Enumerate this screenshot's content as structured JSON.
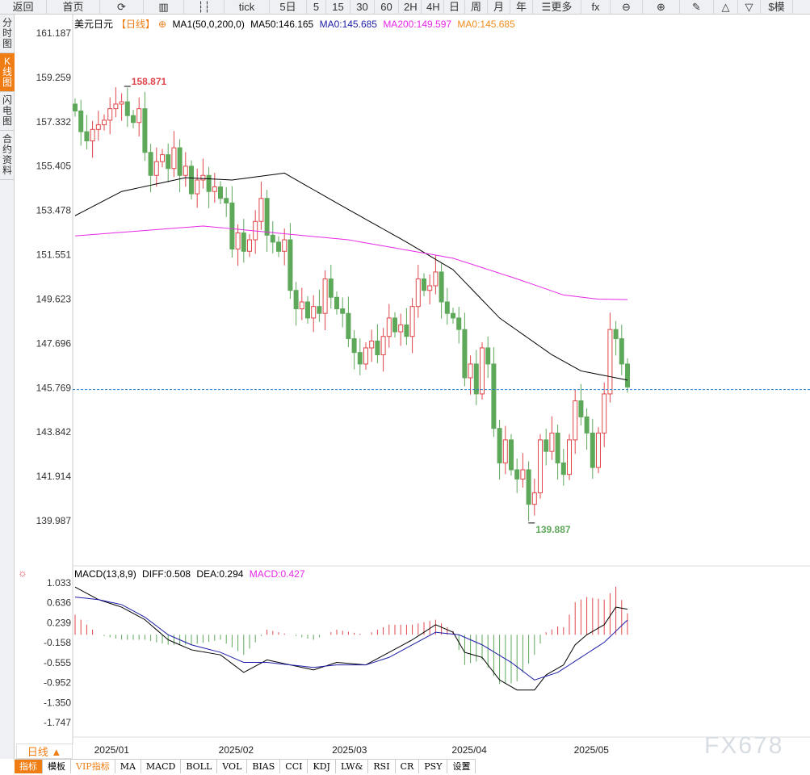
{
  "toolbar": [
    "返回",
    "首页",
    "⟳",
    "▥",
    "┆┆",
    "tick",
    "5日",
    "5",
    "15",
    "30",
    "60",
    "2H",
    "4H",
    "日",
    "周",
    "月",
    "年",
    "☰更多",
    "fx",
    "⊖",
    "⊕",
    "✎",
    "△",
    "▽",
    "$模"
  ],
  "toolbar_icons": [
    "back-icon",
    "home-icon",
    "refresh-icon",
    "chart-icon",
    "candle-icon"
  ],
  "side_tabs": [
    {
      "label": "分时图",
      "active": false
    },
    {
      "label": "K线图",
      "active": true
    },
    {
      "label": "闪电图",
      "active": false
    },
    {
      "label": "合约资料",
      "active": false
    }
  ],
  "legend": {
    "symbol": "美元日元",
    "period": "【日线】",
    "ma_setting": "MA1(50,0,200,0)",
    "ma50": "MA50:146.165",
    "ma0": "MA0:145.685",
    "ma200": "MA200:149.597",
    "ma0b": "MA0:145.685"
  },
  "macd_legend": {
    "name": "MACD(13,8,9)",
    "diff": "DIFF:0.508",
    "dea": "DEA:0.294",
    "macd": "MACD:0.427"
  },
  "period_button": "日线 ▲",
  "bottom_tabs": [
    {
      "label": "指标",
      "active": true
    },
    {
      "label": "模板"
    },
    {
      "label": "VIP指标",
      "vip": true
    },
    {
      "label": "MA"
    },
    {
      "label": "MACD"
    },
    {
      "label": "BOLL"
    },
    {
      "label": "VOL"
    },
    {
      "label": "BIAS"
    },
    {
      "label": "CCI"
    },
    {
      "label": "KDJ"
    },
    {
      "label": "LW&"
    },
    {
      "label": "RSI"
    },
    {
      "label": "CR"
    },
    {
      "label": "PSY"
    },
    {
      "label": "设置"
    }
  ],
  "watermark": "FX678",
  "colors": {
    "up": "#e0464a",
    "down": "#5ea85a",
    "ma50": "#000000",
    "ma200": "#e628e6",
    "diff": "#000000",
    "dea": "#1c1ca8",
    "accent": "#f07d14",
    "current": "#1e7fd0"
  },
  "chart_data": {
    "type": "candlestick",
    "price_ticks": [
      "161.187",
      "159.259",
      "157.332",
      "155.405",
      "153.478",
      "151.551",
      "149.623",
      "147.696",
      "145.769",
      "143.842",
      "141.914",
      "139.987"
    ],
    "ylim": [
      139.987,
      161.187
    ],
    "x_labels": [
      {
        "label": "2025/01",
        "index": 5.5
      },
      {
        "label": "2025/02",
        "index": 26.9
      },
      {
        "label": "2025/03",
        "index": 46.4
      },
      {
        "label": "2025/04",
        "index": 67
      },
      {
        "label": "2025/05",
        "index": 88
      }
    ],
    "high_label": {
      "value": "158.871",
      "index": 9
    },
    "low_label": {
      "value": "139.887",
      "index": 78.5
    },
    "current_price": 145.685,
    "closes": [
      157.8,
      156.9,
      156.5,
      157.0,
      157.2,
      157.4,
      157.9,
      158.1,
      158.2,
      157.6,
      157.3,
      157.9,
      156.0,
      155.0,
      155.6,
      155.9,
      155.3,
      156.2,
      155.0,
      155.4,
      154.2,
      154.8,
      155.0,
      154.3,
      154.5,
      154.0,
      153.8,
      151.8,
      152.5,
      151.7,
      152.2,
      153.0,
      154.0,
      152.4,
      152.1,
      151.7,
      152.2,
      150.0,
      149.2,
      149.5,
      148.8,
      149.3,
      149.0,
      150.5,
      149.7,
      149.2,
      149.0,
      147.9,
      147.3,
      146.8,
      147.5,
      147.8,
      147.2,
      148.0,
      148.8,
      148.2,
      148.5,
      148.0,
      149.3,
      150.5,
      150.0,
      150.2,
      150.8,
      149.5,
      149.0,
      148.8,
      148.3,
      146.2,
      146.8,
      145.5,
      147.5,
      146.8,
      144.0,
      142.5,
      143.5,
      142.2,
      141.8,
      142.2,
      140.7,
      141.2,
      143.5,
      143.0,
      143.8,
      142.5,
      142.0,
      143.5,
      145.2,
      144.5,
      143.8,
      142.3,
      143.8,
      145.5,
      148.3,
      147.9,
      146.8,
      145.8
    ],
    "ma50": [
      [
        0,
        153.25
      ],
      [
        8,
        154.3
      ],
      [
        19,
        154.9
      ],
      [
        27,
        154.8
      ],
      [
        36,
        155.1
      ],
      [
        45,
        153.8
      ],
      [
        57,
        152.1
      ],
      [
        65,
        150.9
      ],
      [
        73,
        148.8
      ],
      [
        82,
        147.2
      ],
      [
        87,
        146.5
      ],
      [
        95,
        146.1
      ]
    ],
    "ma200": [
      [
        0,
        152.37
      ],
      [
        22,
        152.8
      ],
      [
        47,
        152.2
      ],
      [
        65,
        151.4
      ],
      [
        76,
        150.5
      ],
      [
        84,
        149.8
      ],
      [
        90,
        149.62
      ],
      [
        95,
        149.6
      ]
    ],
    "macd": {
      "ticks": [
        "1.033",
        "0.636",
        "0.239",
        "-0.158",
        "-0.555",
        "-0.952",
        "-1.350",
        "-1.747"
      ],
      "ylim": [
        -1.747,
        1.033
      ],
      "diff": [
        [
          0,
          0.95
        ],
        [
          4,
          0.7
        ],
        [
          8,
          0.55
        ],
        [
          12,
          0.3
        ],
        [
          16,
          -0.1
        ],
        [
          20,
          -0.3
        ],
        [
          25,
          -0.4
        ],
        [
          29,
          -0.75
        ],
        [
          33,
          -0.5
        ],
        [
          37,
          -0.6
        ],
        [
          41,
          -0.7
        ],
        [
          45,
          -0.55
        ],
        [
          50,
          -0.6
        ],
        [
          54,
          -0.35
        ],
        [
          58,
          -0.1
        ],
        [
          62,
          0.2
        ],
        [
          65,
          0.05
        ],
        [
          67,
          -0.35
        ],
        [
          70,
          -0.45
        ],
        [
          73,
          -0.9
        ],
        [
          76,
          -1.1
        ],
        [
          79,
          -1.1
        ],
        [
          81,
          -0.8
        ],
        [
          84,
          -0.6
        ],
        [
          86,
          -0.2
        ],
        [
          88,
          0
        ],
        [
          91,
          0.2
        ],
        [
          93,
          0.55
        ],
        [
          95,
          0.508
        ]
      ],
      "dea": [
        [
          0,
          0.75
        ],
        [
          4,
          0.7
        ],
        [
          8,
          0.6
        ],
        [
          12,
          0.35
        ],
        [
          16,
          0.0
        ],
        [
          20,
          -0.2
        ],
        [
          25,
          -0.35
        ],
        [
          29,
          -0.55
        ],
        [
          33,
          -0.55
        ],
        [
          37,
          -0.6
        ],
        [
          41,
          -0.65
        ],
        [
          45,
          -0.6
        ],
        [
          50,
          -0.6
        ],
        [
          54,
          -0.45
        ],
        [
          58,
          -0.2
        ],
        [
          62,
          0.05
        ],
        [
          66,
          0.0
        ],
        [
          70,
          -0.2
        ],
        [
          75,
          -0.55
        ],
        [
          79,
          -0.9
        ],
        [
          83,
          -0.75
        ],
        [
          87,
          -0.45
        ],
        [
          91,
          -0.15
        ],
        [
          95,
          0.294
        ]
      ]
    }
  }
}
